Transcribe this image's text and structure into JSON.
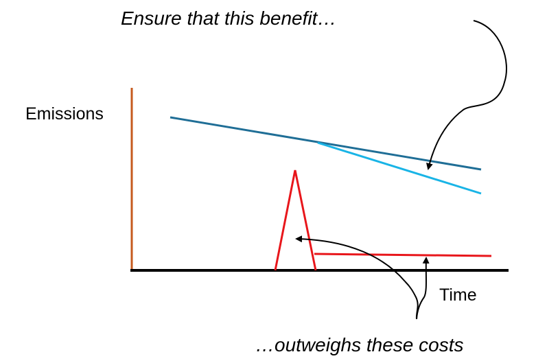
{
  "annotations": {
    "top": "Ensure that this benefit…",
    "bottom": "…outweighs these costs"
  },
  "axes": {
    "y_label": "Emissions",
    "x_label": "Time"
  },
  "colors": {
    "y_axis": "#C65A1E",
    "x_axis": "#000000",
    "baseline_emissions": "#1F6E96",
    "reduced_emissions": "#19B4E6",
    "cost_emissions": "#E8161B",
    "arrows": "#000000"
  }
}
